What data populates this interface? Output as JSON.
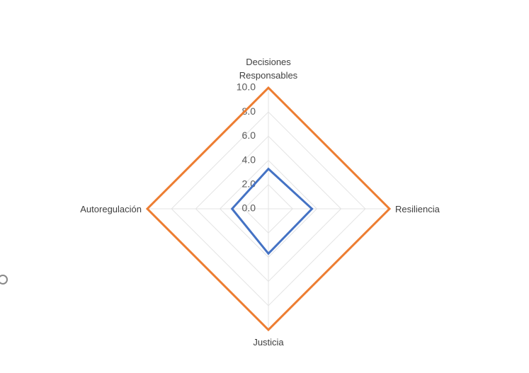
{
  "chart_data": {
    "type": "radar",
    "categories": [
      "Decisiones Responsables",
      "Resiliencia",
      "Justicia",
      "Autoregulación"
    ],
    "series": [
      {
        "color": "#ed7d31",
        "values": [
          10,
          10,
          10,
          10
        ]
      },
      {
        "color": "#4472c4",
        "values": [
          3.3,
          3.6,
          3.7,
          3.0
        ]
      }
    ],
    "ylim": [
      0,
      10
    ],
    "yticks": [
      {
        "value": 0,
        "label": "0.0"
      },
      {
        "value": 2,
        "label": "2.0"
      },
      {
        "value": 4,
        "label": "4.0"
      },
      {
        "value": 6,
        "label": "6.0"
      },
      {
        "value": 8,
        "label": "8.0"
      },
      {
        "value": 10,
        "label": "10.0"
      }
    ],
    "grid": true
  }
}
